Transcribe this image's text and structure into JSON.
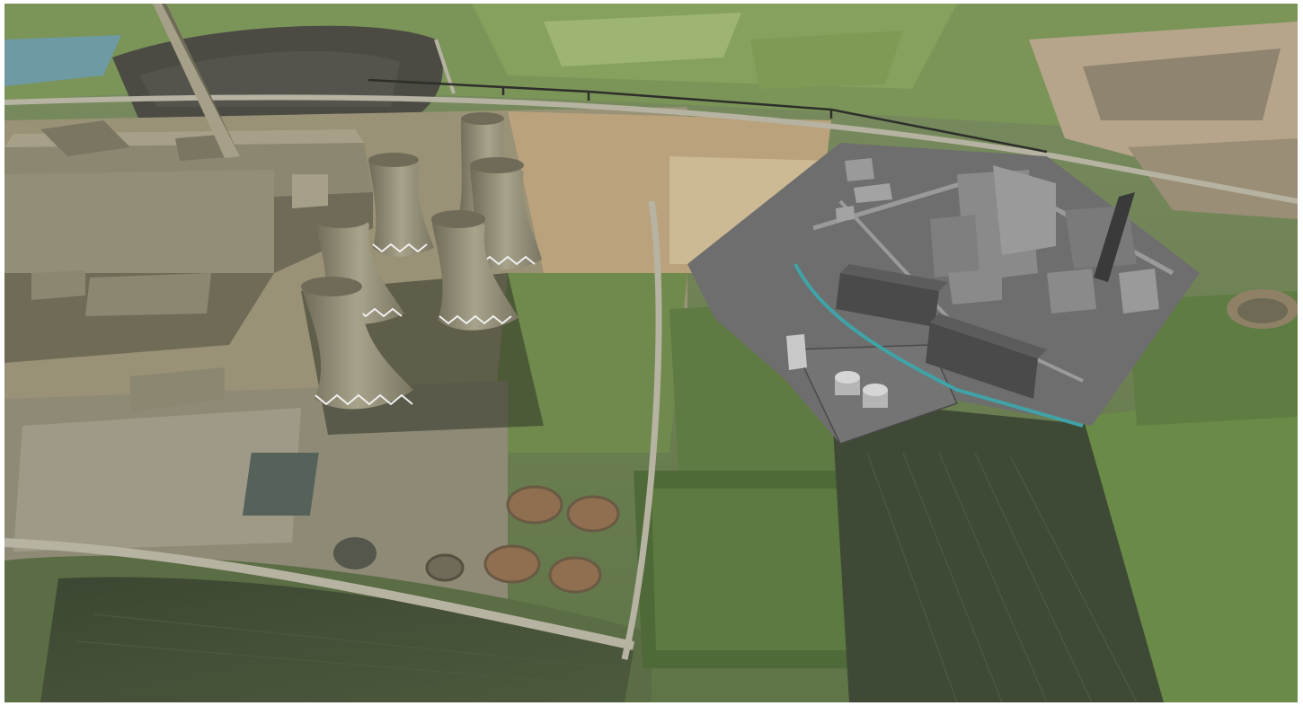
{
  "scene": {
    "kind": "aerial-3d-visualisation",
    "colors": {
      "field_dark": "#3f4a36",
      "field_green": "#6f8a4c",
      "field_light": "#8fa565",
      "soil": "#b9a27c",
      "sand": "#cdb994",
      "ash_lagoon": "#4b4b44",
      "water": "#6e9aa3",
      "road": "#a9a69a",
      "model_existing": "#8c8770",
      "model_existing_light": "#a5a087",
      "model_proposed_platform": "#6e6e6e",
      "model_proposed_building": "#8a8a8a",
      "tank_grey": "#bfbfbf",
      "canal": "#3fa3a8",
      "shadow": "#2f3328"
    }
  }
}
